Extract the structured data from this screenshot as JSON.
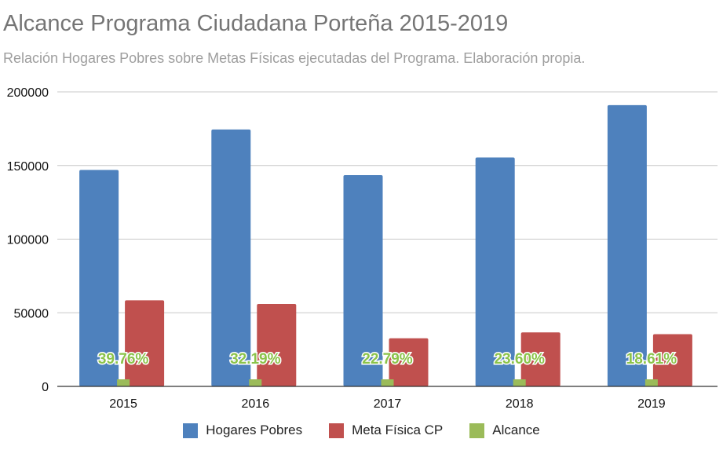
{
  "chart_data": {
    "type": "bar",
    "title": "Alcance Programa Ciudadana Porteña 2015-2019",
    "subtitle": "Relación Hogares Pobres sobre Metas Físicas ejecutadas del Programa. Elaboración propia.",
    "categories": [
      "2015",
      "2016",
      "2017",
      "2018",
      "2019"
    ],
    "series": [
      {
        "name": "Hogares Pobres",
        "color": "#4e81bd",
        "values": [
          147000,
          174500,
          143500,
          155500,
          191000
        ]
      },
      {
        "name": "Meta Física CP",
        "color": "#c0504e",
        "values": [
          58500,
          56000,
          32700,
          36700,
          35500
        ]
      },
      {
        "name": "Alcance",
        "color": "#9bbb59",
        "values": [
          39.76,
          32.19,
          22.79,
          23.6,
          18.61
        ],
        "labels": [
          "39.76%",
          "32.19%",
          "22.79%",
          "23.60%",
          "18.61%"
        ]
      }
    ],
    "yticks": [
      "0",
      "50000",
      "100000",
      "150000",
      "200000"
    ],
    "ylim": [
      0,
      200000
    ],
    "grid": true,
    "legend_position": "bottom"
  }
}
